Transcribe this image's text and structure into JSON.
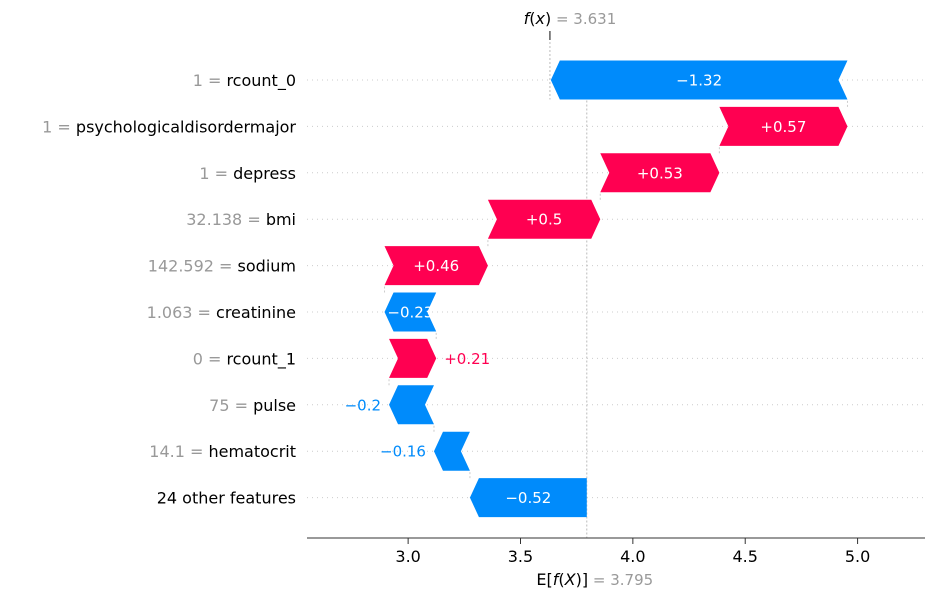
{
  "chart_data": {
    "type": "bar",
    "subtype": "waterfall",
    "fx": {
      "label_html": "f(x)",
      "value_text": "3.631",
      "value": 3.631
    },
    "ex": {
      "label_html": "E[f(X)]",
      "value_text": "3.795",
      "value": 3.795
    },
    "xlim": [
      2.55,
      5.3
    ],
    "xticks": [
      3.0,
      3.5,
      4.0,
      4.5,
      5.0
    ],
    "xtick_labels": [
      "3.0",
      "3.5",
      "4.0",
      "4.5",
      "5.0"
    ],
    "colors": {
      "positive": "#ff0051",
      "negative": "#008bfb",
      "muted": "#999999"
    },
    "features": [
      {
        "value": "1",
        "name": "rcount_0",
        "contribution": -1.32,
        "label": "−1.32"
      },
      {
        "value": "1",
        "name": "psychologicaldisordermajor",
        "contribution": 0.57,
        "label": "+0.57"
      },
      {
        "value": "1",
        "name": "depress",
        "contribution": 0.53,
        "label": "+0.53"
      },
      {
        "value": "32.138",
        "name": "bmi",
        "contribution": 0.5,
        "label": "+0.5"
      },
      {
        "value": "142.592",
        "name": "sodium",
        "contribution": 0.46,
        "label": "+0.46"
      },
      {
        "value": "1.063",
        "name": "creatinine",
        "contribution": -0.23,
        "label": "−0.23"
      },
      {
        "value": "0",
        "name": "rcount_1",
        "contribution": 0.21,
        "label": "+0.21"
      },
      {
        "value": "75",
        "name": "pulse",
        "contribution": -0.2,
        "label": "−0.2"
      },
      {
        "value": "14.1",
        "name": "hematocrit",
        "contribution": -0.16,
        "label": "−0.16"
      },
      {
        "value": "",
        "name": "24 other features",
        "contribution": -0.52,
        "label": "−0.52"
      }
    ]
  }
}
